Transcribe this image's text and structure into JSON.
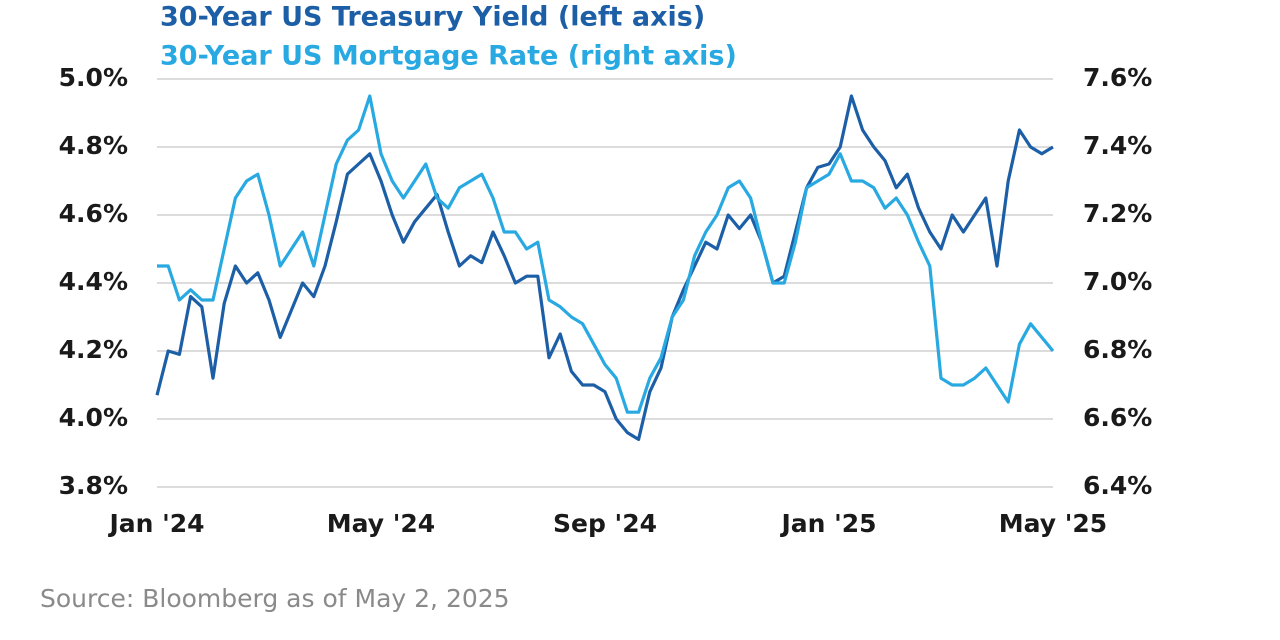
{
  "chart_data": {
    "type": "line",
    "source": "Source: Bloomberg as of May 2, 2025",
    "x": [
      0,
      0.2,
      0.4,
      0.6,
      0.8,
      1,
      1.2,
      1.4,
      1.6,
      1.8,
      2,
      2.2,
      2.4,
      2.6,
      2.8,
      3,
      3.2,
      3.4,
      3.6,
      3.8,
      4,
      4.2,
      4.4,
      4.6,
      4.8,
      5,
      5.2,
      5.4,
      5.6,
      5.8,
      6,
      6.2,
      6.4,
      6.6,
      6.8,
      7,
      7.2,
      7.4,
      7.6,
      7.8,
      8,
      8.2,
      8.4,
      8.6,
      8.8,
      9,
      9.2,
      9.4,
      9.6,
      9.8,
      10,
      10.2,
      10.4,
      10.6,
      10.8,
      11,
      11.2,
      11.4,
      11.6,
      11.8,
      12,
      12.2,
      12.4,
      12.6,
      12.8,
      13,
      13.2,
      13.4,
      13.6,
      13.8,
      14,
      14.2,
      14.4,
      14.6,
      14.8,
      15,
      15.2,
      15.4,
      15.6,
      15.8,
      16
    ],
    "series": [
      {
        "name": "30-Year US Treasury Yield (left axis)",
        "color": "#1d5fa6",
        "axis": "y",
        "values": [
          4.07,
          4.2,
          4.19,
          4.36,
          4.33,
          4.12,
          4.34,
          4.45,
          4.4,
          4.43,
          4.35,
          4.24,
          4.32,
          4.4,
          4.36,
          4.45,
          4.58,
          4.72,
          4.75,
          4.78,
          4.7,
          4.6,
          4.52,
          4.58,
          4.62,
          4.66,
          4.55,
          4.45,
          4.48,
          4.46,
          4.55,
          4.48,
          4.4,
          4.42,
          4.42,
          4.18,
          4.25,
          4.14,
          4.1,
          4.1,
          4.08,
          4.0,
          3.96,
          3.94,
          4.08,
          4.15,
          4.3,
          4.38,
          4.45,
          4.52,
          4.5,
          4.6,
          4.56,
          4.6,
          4.52,
          4.4,
          4.42,
          4.55,
          4.68,
          4.74,
          4.75,
          4.8,
          4.95,
          4.85,
          4.8,
          4.76,
          4.68,
          4.72,
          4.62,
          4.55,
          4.5,
          4.6,
          4.55,
          4.6,
          4.65,
          4.45,
          4.7,
          4.85,
          4.8,
          4.78,
          4.8
        ]
      },
      {
        "name": "30-Year US Mortgage Rate (right axis)",
        "color": "#29a9e1",
        "axis": "y2",
        "values": [
          7.05,
          7.05,
          6.95,
          6.98,
          6.95,
          6.95,
          7.1,
          7.25,
          7.3,
          7.32,
          7.2,
          7.05,
          7.1,
          7.15,
          7.05,
          7.2,
          7.35,
          7.42,
          7.45,
          7.55,
          7.38,
          7.3,
          7.25,
          7.3,
          7.35,
          7.25,
          7.22,
          7.28,
          7.3,
          7.32,
          7.25,
          7.15,
          7.15,
          7.1,
          7.12,
          6.95,
          6.93,
          6.9,
          6.88,
          6.82,
          6.76,
          6.72,
          6.62,
          6.62,
          6.72,
          6.78,
          6.9,
          6.95,
          7.08,
          7.15,
          7.2,
          7.28,
          7.3,
          7.25,
          7.12,
          7.0,
          7.0,
          7.12,
          7.28,
          7.3,
          7.32,
          7.38,
          7.3,
          7.3,
          7.28,
          7.22,
          7.25,
          7.2,
          7.12,
          7.05,
          6.72,
          6.7,
          6.7,
          6.72,
          6.75,
          6.7,
          6.65,
          6.82,
          6.88,
          6.84,
          6.8
        ]
      }
    ],
    "xlim": [
      0,
      16
    ],
    "xticks": [
      {
        "value": 0,
        "label": "Jan '24"
      },
      {
        "value": 4,
        "label": "May '24"
      },
      {
        "value": 8,
        "label": "Sep '24"
      },
      {
        "value": 12,
        "label": "Jan '25"
      },
      {
        "value": 16,
        "label": "May '25"
      }
    ],
    "ylim": [
      3.8,
      5.0
    ],
    "yticks": [
      {
        "value": 3.8,
        "label": "3.8%"
      },
      {
        "value": 4.0,
        "label": "4.0%"
      },
      {
        "value": 4.2,
        "label": "4.2%"
      },
      {
        "value": 4.4,
        "label": "4.4%"
      },
      {
        "value": 4.6,
        "label": "4.6%"
      },
      {
        "value": 4.8,
        "label": "4.8%"
      },
      {
        "value": 5.0,
        "label": "5.0%"
      }
    ],
    "y2lim": [
      6.4,
      7.6
    ],
    "y2ticks": [
      {
        "value": 6.4,
        "label": "6.4%"
      },
      {
        "value": 6.6,
        "label": "6.6%"
      },
      {
        "value": 6.8,
        "label": "6.8%"
      },
      {
        "value": 7.0,
        "label": "7.0%"
      },
      {
        "value": 7.2,
        "label": "7.2%"
      },
      {
        "value": 7.4,
        "label": "7.4%"
      },
      {
        "value": 7.6,
        "label": "7.6%"
      }
    ],
    "grid": true
  }
}
